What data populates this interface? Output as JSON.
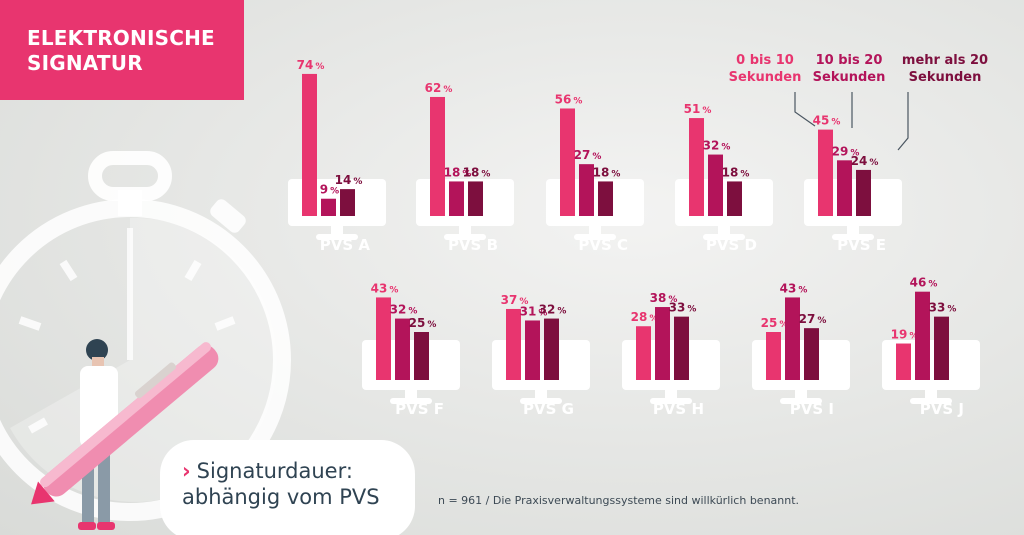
{
  "header": {
    "title_line1": "ELEKTRONISCHE",
    "title_line2": "SIGNATUR"
  },
  "subtitle": {
    "arrow": "›",
    "line1": "Signaturdauer:",
    "line2": "abhängig vom PVS"
  },
  "footnote": "n = 961 / Die Praxisverwaltungssysteme sind willkürlich benannt.",
  "legend": [
    {
      "line1": "0 bis 10",
      "line2": "Sekunden",
      "color": "#e8356f"
    },
    {
      "line1": "10 bis 20",
      "line2": "Sekunden",
      "color": "#b3145a"
    },
    {
      "line1": "mehr als 20",
      "line2": "Sekunden",
      "color": "#7d0f3e"
    }
  ],
  "colors": {
    "accent": "#e8356f",
    "series1": "#e8356f",
    "series2": "#b3145a",
    "series3": "#7d0f3e",
    "monitor": "#ffffff",
    "pvs_label": "#ffffff"
  },
  "chart_data": {
    "type": "bar",
    "unit": "%",
    "categories": [
      "PVS A",
      "PVS B",
      "PVS C",
      "PVS D",
      "PVS E",
      "PVS F",
      "PVS G",
      "PVS H",
      "PVS I",
      "PVS J"
    ],
    "series": [
      {
        "name": "0 bis 10 Sekunden",
        "values": [
          74,
          62,
          56,
          51,
          45,
          43,
          37,
          28,
          25,
          19
        ]
      },
      {
        "name": "10 bis 20 Sekunden",
        "values": [
          9,
          18,
          27,
          32,
          29,
          32,
          31,
          38,
          43,
          46
        ]
      },
      {
        "name": "mehr als 20 Sekunden",
        "values": [
          14,
          18,
          18,
          18,
          24,
          25,
          32,
          33,
          27,
          33
        ]
      }
    ],
    "ylim": [
      0,
      80
    ],
    "grid": false,
    "legend_position": "top-right"
  }
}
